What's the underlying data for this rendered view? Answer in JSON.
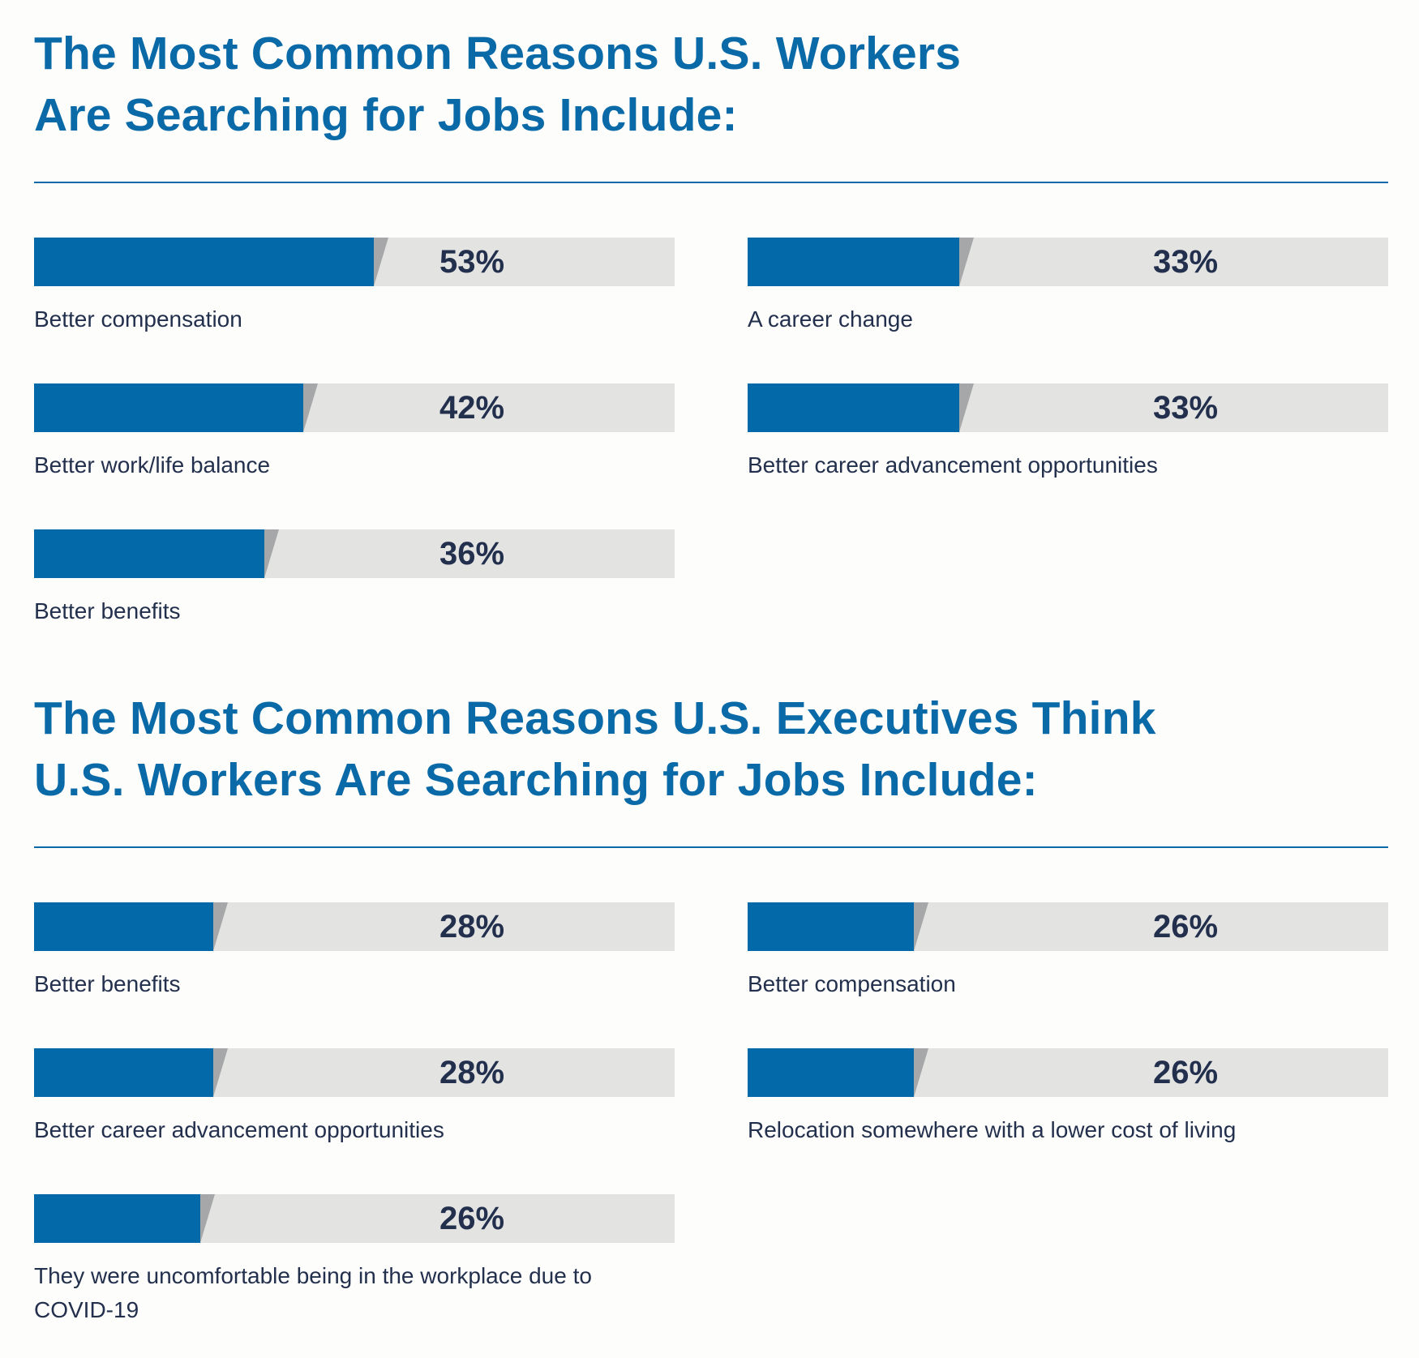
{
  "colors": {
    "title": "#0a6aa8",
    "bar_fill": "#0469a9",
    "bar_track": "#e3e3e2",
    "bar_shade": "#a6a7a8",
    "text": "#23304d",
    "rule": "#0a6aa8"
  },
  "sections": [
    {
      "title_lines": [
        "The Most Common Reasons U.S. Workers",
        "Are Searching for Jobs Include:"
      ]
    },
    {
      "title_lines": [
        "The Most Common Reasons U.S. Executives Think",
        "U.S. Workers Are Searching for Jobs Include:"
      ]
    }
  ],
  "chart_data": [
    {
      "type": "bar",
      "orientation": "horizontal",
      "title": "The Most Common Reasons U.S. Workers Are Searching for Jobs Include:",
      "categories": [
        "Better compensation",
        "A career change",
        "Better work/life balance",
        "Better career advancement opportunities",
        "Better benefits"
      ],
      "values": [
        53,
        33,
        42,
        33,
        36
      ],
      "value_labels": [
        "53%",
        "33%",
        "42%",
        "33%",
        "36%"
      ],
      "unit": "%",
      "xlim": [
        0,
        100
      ],
      "grid": false
    },
    {
      "type": "bar",
      "orientation": "horizontal",
      "title": "The Most Common Reasons U.S. Executives Think U.S. Workers Are Searching for Jobs Include:",
      "categories": [
        "Better benefits",
        "Better compensation",
        "Better career advancement opportunities",
        "Relocation somewhere with a lower cost of living",
        "They were uncomfortable being in the workplace due to COVID-19"
      ],
      "values": [
        28,
        26,
        28,
        26,
        26
      ],
      "value_labels": [
        "28%",
        "26%",
        "28%",
        "26%",
        "26%"
      ],
      "unit": "%",
      "xlim": [
        0,
        100
      ],
      "grid": false
    }
  ]
}
